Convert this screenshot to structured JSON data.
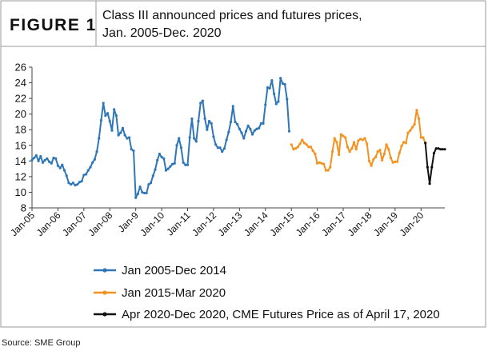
{
  "header": {
    "figure_label": "FIGURE 1",
    "title_line1": "Class III announced prices and futures prices,",
    "title_line2": "Jan. 2005-Dec. 2020"
  },
  "source": "Source: SME Group",
  "colors": {
    "frame": "#999999",
    "series_2005_2014": "#2f76b8",
    "series_2015_2020": "#f5921f",
    "series_futures": "#111111"
  },
  "chart_data": {
    "type": "line",
    "title": "Class III announced prices and futures prices, Jan. 2005-Dec. 2020",
    "xlabel": "",
    "ylabel": "",
    "ylim": [
      8,
      26
    ],
    "yticks": [
      8,
      10,
      12,
      14,
      16,
      18,
      20,
      22,
      24,
      26
    ],
    "xlim": [
      "Jan-05",
      "Dec-20"
    ],
    "xticks": [
      "Jan-05",
      "Jan-06",
      "Jan-07",
      "Jan-08",
      "Jan-9",
      "Jan-10",
      "Jan-11",
      "Jan-12",
      "Jan-13",
      "Jan-14",
      "Jan-15",
      "Jan-16",
      "Jan-17",
      "Jan-18",
      "Jan-19",
      "Jan-20"
    ],
    "grid": false,
    "legend_position": "bottom",
    "series": [
      {
        "name": "Jan 2005-Dec 2014",
        "color": "#2f76b8",
        "start": "Jan-05",
        "values": [
          14.1,
          14.4,
          14.7,
          14.0,
          14.6,
          13.8,
          14.1,
          14.3,
          13.9,
          13.7,
          14.4,
          14.3,
          13.4,
          13.1,
          13.5,
          12.8,
          12.1,
          11.2,
          11.0,
          11.2,
          10.9,
          11.0,
          11.3,
          11.4,
          12.2,
          12.3,
          12.8,
          13.2,
          13.8,
          14.2,
          15.2,
          16.9,
          19.2,
          21.4,
          19.8,
          20.1,
          19.1,
          17.9,
          20.6,
          19.8,
          17.3,
          17.6,
          18.2,
          17.3,
          16.9,
          17.0,
          15.5,
          15.3,
          9.3,
          9.8,
          10.7,
          10.0,
          9.9,
          9.9,
          11.0,
          11.2,
          12.1,
          12.9,
          14.1,
          14.9,
          14.5,
          14.3,
          12.8,
          13.0,
          13.3,
          13.6,
          13.7,
          16.0,
          16.9,
          15.7,
          13.8,
          13.5,
          13.5,
          17.0,
          19.4,
          16.9,
          16.5,
          19.1,
          21.4,
          21.7,
          19.4,
          18.0,
          19.1,
          18.8,
          17.1,
          16.1,
          15.7,
          15.7,
          15.2,
          15.6,
          16.7,
          17.7,
          19.0,
          21.0,
          19.0,
          18.7,
          18.1,
          17.6,
          16.9,
          17.8,
          18.5,
          18.1,
          17.4,
          17.9,
          18.1,
          18.2,
          18.8,
          18.8,
          21.2,
          23.4,
          23.3,
          24.3,
          22.6,
          21.3,
          21.6,
          24.6,
          23.9,
          23.8,
          21.9,
          17.8
        ]
      },
      {
        "name": "Jan 2015-Mar 2020",
        "color": "#f5921f",
        "start": "Jan-15",
        "values": [
          16.1,
          15.5,
          15.6,
          15.8,
          16.2,
          16.7,
          16.3,
          16.1,
          15.8,
          15.8,
          15.3,
          14.9,
          13.7,
          13.8,
          13.7,
          13.6,
          12.8,
          12.8,
          13.2,
          15.2,
          16.9,
          16.4,
          14.8,
          17.4,
          17.2,
          17.0,
          15.8,
          15.2,
          15.6,
          16.4,
          15.5,
          16.6,
          16.8,
          16.7,
          16.9,
          16.2,
          14.0,
          13.4,
          14.2,
          14.5,
          15.2,
          15.4,
          14.1,
          14.9,
          16.1,
          15.5,
          14.4,
          13.8,
          13.9,
          13.9,
          15.0,
          15.9,
          16.4,
          16.3,
          17.6,
          17.9,
          18.3,
          18.7,
          20.5,
          19.4,
          17.0,
          17.0,
          16.3
        ]
      },
      {
        "name": "Apr 2020-Dec 2020, CME Futures Price as of April 17, 2020",
        "color": "#111111",
        "start": "Mar-20",
        "values": [
          16.3,
          13.2,
          11.1,
          13.2,
          15.0,
          15.6,
          15.6,
          15.5,
          15.5,
          15.5
        ]
      }
    ]
  }
}
